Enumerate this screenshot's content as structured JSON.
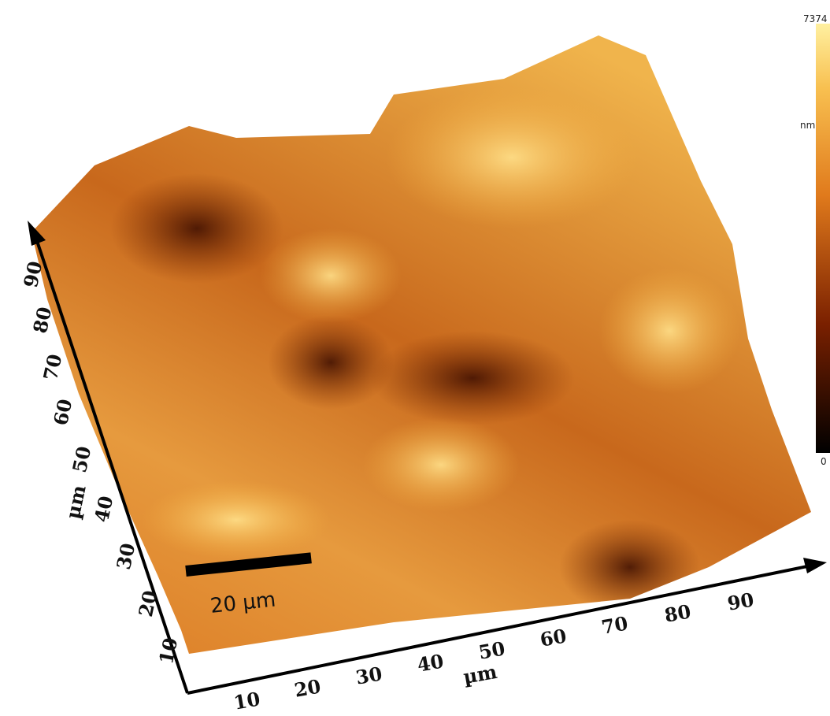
{
  "colorbar": {
    "max": "7374",
    "unit": "nm",
    "min": "0"
  },
  "scale_bar": {
    "label": "20 µm"
  },
  "x_axis": {
    "label": "µm",
    "ticks": [
      "10",
      "20",
      "30",
      "40",
      "50",
      "60",
      "70",
      "80",
      "90"
    ]
  },
  "y_axis": {
    "label": "µm",
    "ticks": [
      "10",
      "20",
      "30",
      "40",
      "50",
      "60",
      "70",
      "80",
      "90"
    ]
  }
}
